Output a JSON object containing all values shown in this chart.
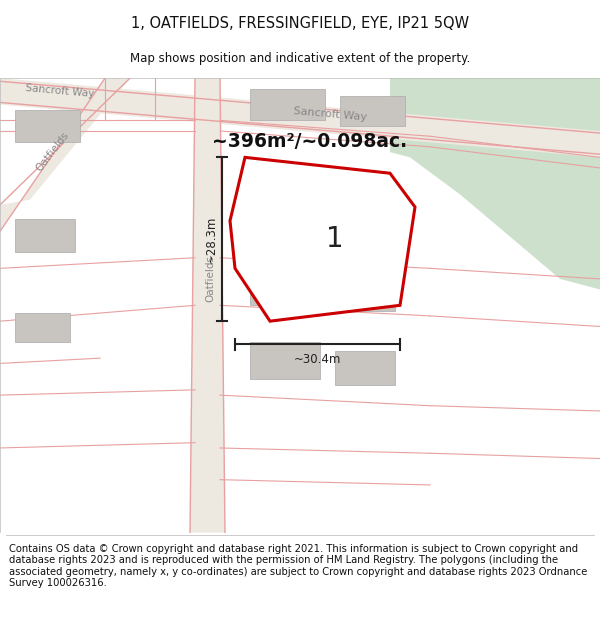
{
  "title": "1, OATFIELDS, FRESSINGFIELD, EYE, IP21 5QW",
  "subtitle": "Map shows position and indicative extent of the property.",
  "footer": "Contains OS data © Crown copyright and database right 2021. This information is subject to Crown copyright and database rights 2023 and is reproduced with the permission of HM Land Registry. The polygons (including the associated geometry, namely x, y co-ordinates) are subject to Crown copyright and database rights 2023 Ordnance Survey 100026316.",
  "area_label": "~396m²/~0.098ac.",
  "plot_number": "1",
  "dim_width": "~30.4m",
  "dim_height": "~28.3m",
  "map_bg": "#ede8e0",
  "road_fill": "#ede8e0",
  "road_line": "#e8a0a0",
  "building_color": "#c8c4c0",
  "building_outline": "#aaaaaa",
  "plot_fill": "#ffffff",
  "plot_stroke": "#cc0000",
  "green_area": "#cce0cc",
  "dim_line_color": "#222222",
  "road_label_color": "#888888",
  "title_fontsize": 10.5,
  "subtitle_fontsize": 8.5,
  "footer_fontsize": 7.2
}
